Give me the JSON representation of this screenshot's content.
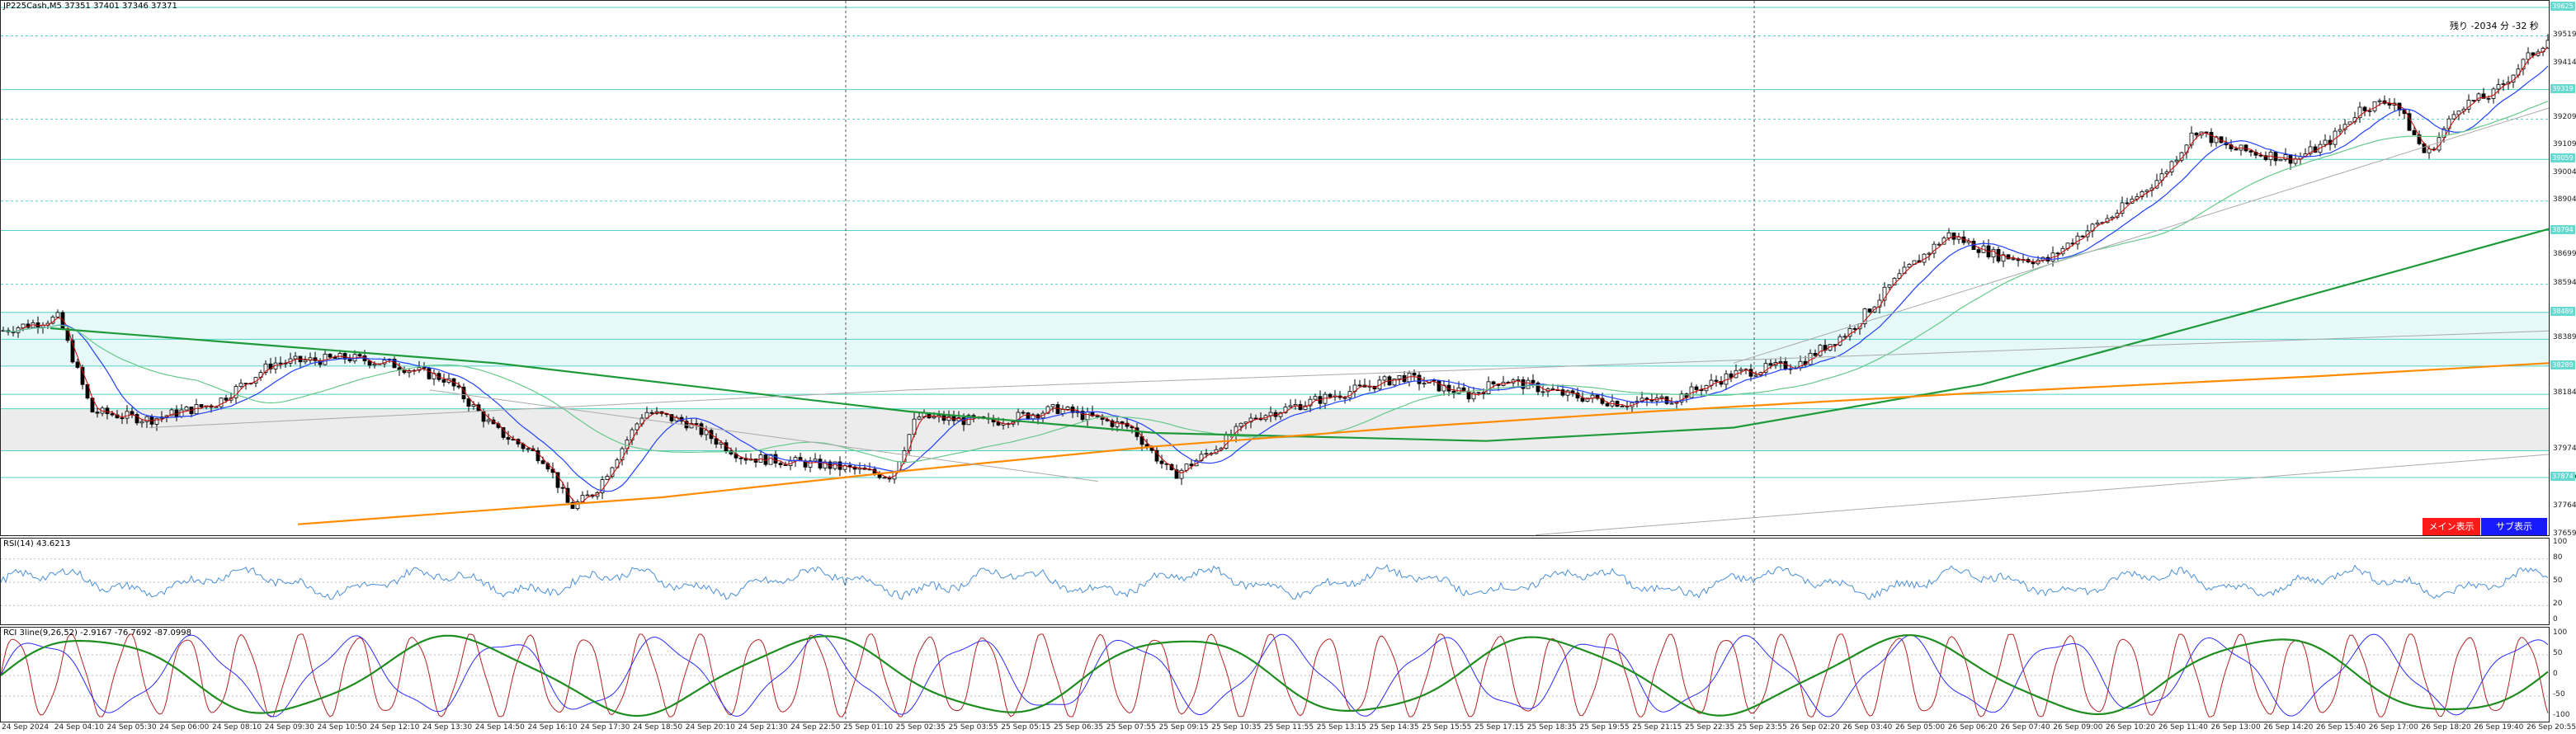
{
  "main_panel": {
    "title": "JP225Cash,M5  37351 37401 37346 37371",
    "countdown": "残り -2034 分 -32 秒",
    "main_button": "メイン表示",
    "sub_button": "サブ表示",
    "price_labels": [
      "39519",
      "39414",
      "39209",
      "39109",
      "39004",
      "38904",
      "38699",
      "38594",
      "38389",
      "38184",
      "37974",
      "37869",
      "37659",
      "37764"
    ],
    "highlight_price_labels": [
      "39625",
      "39319",
      "39059",
      "38794",
      "38489",
      "38289",
      "37874"
    ],
    "colors": {
      "candle": "#000000",
      "ma_blue": "#2040ff",
      "ma_lightgreen": "#66c98a",
      "ma_green": "#1e9a3a",
      "ma_orange": "#ff8c00",
      "red_line": "#cc0000",
      "zone_cyan": "#e6f8f8",
      "zone_grey": "#ececec",
      "hline": "#4fd1c5",
      "main_btn": "#ff1a1a",
      "sub_btn": "#1a1aff"
    }
  },
  "rsi_panel": {
    "title": "RSI(14) 43.6213",
    "levels": [
      "100",
      "80",
      "50",
      "20",
      "0"
    ],
    "colors": {
      "line": "#4a90d9"
    }
  },
  "rci_panel": {
    "title": "RCI 3line(9,26,52) -2.9167 -76.7692 -87.0998",
    "levels": [
      "100",
      "50",
      "0",
      "-50",
      "-100"
    ],
    "colors": {
      "short": "#b22222",
      "mid": "#2a2aff",
      "long": "#1e8c1e"
    }
  },
  "time_axis": [
    "24 Sep 2024",
    "24 Sep 04:10",
    "24 Sep 05:30",
    "24 Sep 06:00",
    "24 Sep 08:10",
    "24 Sep 09:30",
    "24 Sep 10:50",
    "24 Sep 12:10",
    "24 Sep 13:30",
    "24 Sep 14:50",
    "24 Sep 16:10",
    "24 Sep 17:30",
    "24 Sep 18:50",
    "24 Sep 20:10",
    "24 Sep 21:30",
    "24 Sep 22:50",
    "25 Sep 01:10",
    "25 Sep 02:35",
    "25 Sep 03:55",
    "25 Sep 05:15",
    "25 Sep 06:35",
    "25 Sep 07:55",
    "25 Sep 09:15",
    "25 Sep 10:35",
    "25 Sep 11:55",
    "25 Sep 13:15",
    "25 Sep 14:35",
    "25 Sep 15:55",
    "25 Sep 17:15",
    "25 Sep 18:35",
    "25 Sep 19:55",
    "25 Sep 21:15",
    "25 Sep 22:35",
    "25 Sep 23:55",
    "26 Sep 02:20",
    "26 Sep 03:40",
    "26 Sep 05:00",
    "26 Sep 06:20",
    "26 Sep 07:40",
    "26 Sep 09:00",
    "26 Sep 10:20",
    "26 Sep 11:40",
    "26 Sep 13:00",
    "26 Sep 14:20",
    "26 Sep 15:40",
    "26 Sep 17:00",
    "26 Sep 18:20",
    "26 Sep 19:40",
    "26 Sep 20:55"
  ]
}
